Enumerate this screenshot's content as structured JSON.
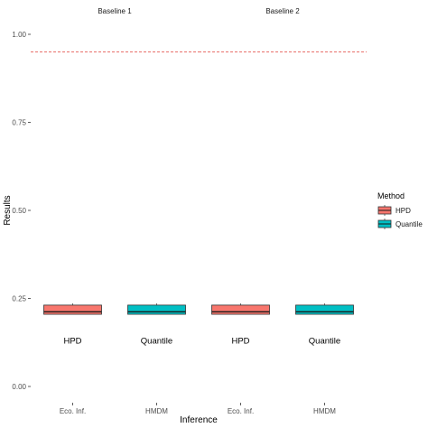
{
  "chart_data": {
    "type": "boxplot",
    "xlabel": "Inference",
    "ylabel": "Results",
    "ylim": [
      0.0,
      1.0
    ],
    "yticks": [
      "0.00",
      "0.25",
      "0.50",
      "0.75",
      "1.00"
    ],
    "reference_line": {
      "y": 0.95,
      "style": "dashed",
      "color": "#e8716b"
    },
    "grid": false,
    "legend": {
      "title": "Method",
      "position": "right",
      "entries": [
        {
          "name": "HPD",
          "color": "#f8766d"
        },
        {
          "name": "Quantile",
          "color": "#00bfc4"
        }
      ]
    },
    "facets": [
      {
        "title": "Baseline 1",
        "categories": [
          "Eco. Inf.",
          "HMDM"
        ],
        "boxes": [
          {
            "method": "HPD",
            "category": "Eco. Inf.",
            "min": 0.205,
            "q1": 0.205,
            "median": 0.212,
            "q3": 0.231,
            "max": 0.236
          },
          {
            "method": "Quantile",
            "category": "HMDM",
            "min": 0.205,
            "q1": 0.205,
            "median": 0.212,
            "q3": 0.231,
            "max": 0.236
          }
        ],
        "annotations": [
          {
            "text": "HPD",
            "category": "Eco. Inf.",
            "y": 0.13
          },
          {
            "text": "Quantile",
            "category": "HMDM",
            "y": 0.13
          }
        ]
      },
      {
        "title": "Baseline 2",
        "categories": [
          "Eco. Inf.",
          "HMDM"
        ],
        "boxes": [
          {
            "method": "HPD",
            "category": "Eco. Inf.",
            "min": 0.205,
            "q1": 0.205,
            "median": 0.212,
            "q3": 0.231,
            "max": 0.236
          },
          {
            "method": "Quantile",
            "category": "HMDM",
            "min": 0.205,
            "q1": 0.205,
            "median": 0.212,
            "q3": 0.231,
            "max": 0.236
          }
        ],
        "annotations": [
          {
            "text": "HPD",
            "category": "Eco. Inf.",
            "y": 0.13
          },
          {
            "text": "Quantile",
            "category": "HMDM",
            "y": 0.13
          }
        ]
      }
    ]
  }
}
